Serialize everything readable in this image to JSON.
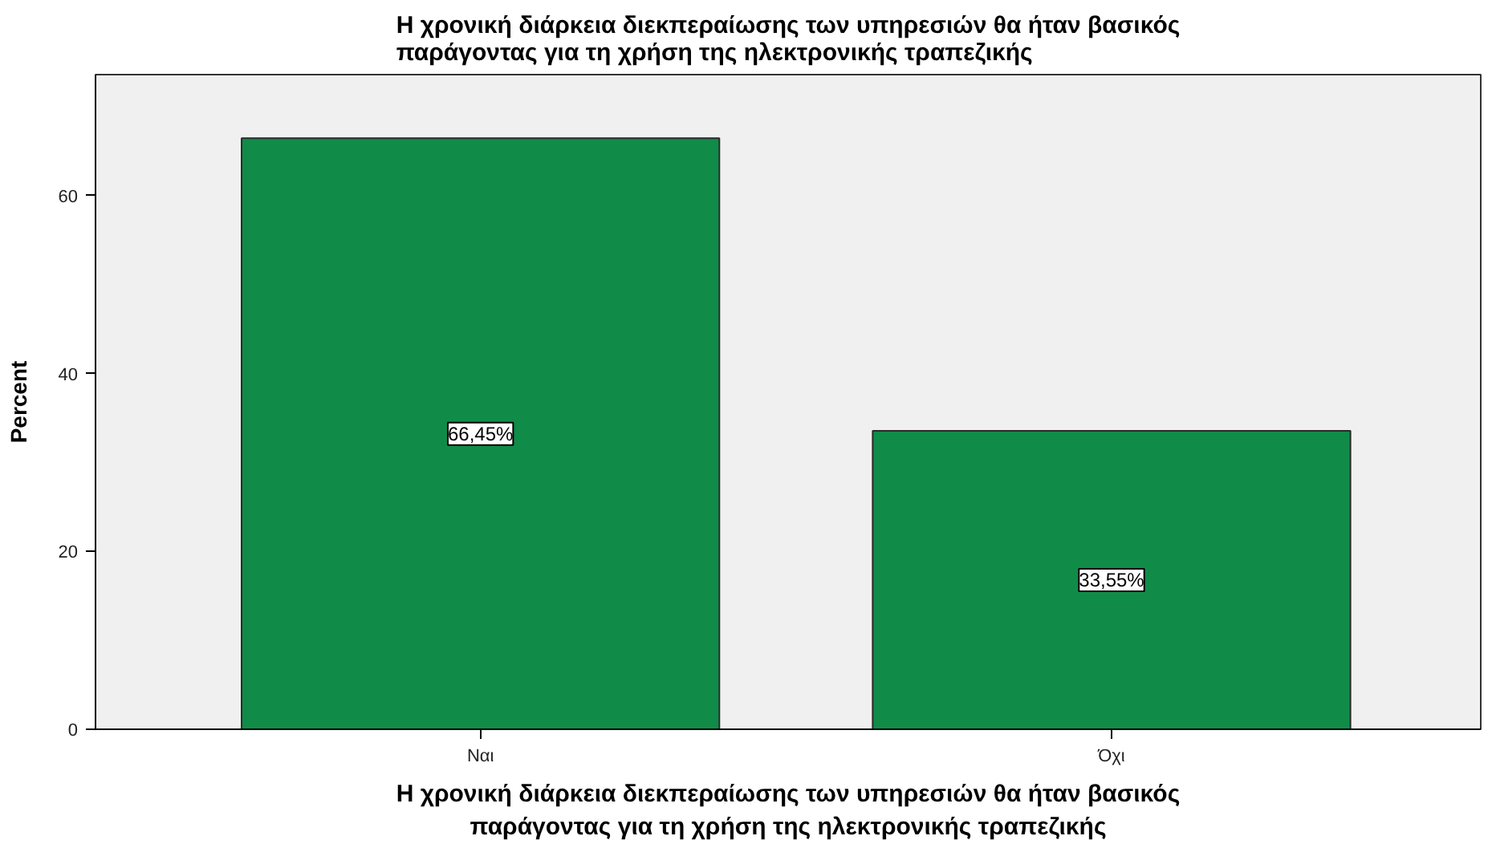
{
  "chart_data": {
    "type": "bar",
    "title": "Η χρονική διάρκεια διεκπεραίωσης των υπηρεσιών θα ήταν βασικός παράγοντας για τη χρήση της ηλεκτρονικής τραπεζικής",
    "xlabel": "Η χρονική διάρκεια διεκπεραίωσης των υπηρεσιών θα ήταν βασικός παράγοντας για τη χρήση της ηλεκτρονικής τραπεζικής",
    "ylabel": "Percent",
    "categories": [
      "Ναι",
      "Όχι"
    ],
    "values": [
      66.45,
      33.55
    ],
    "value_labels": [
      "66,45%",
      "33,55%"
    ],
    "color": "#108c48",
    "ylim": [
      0,
      73.6
    ],
    "yticks": [
      0,
      20,
      40,
      60
    ],
    "grid": false
  }
}
